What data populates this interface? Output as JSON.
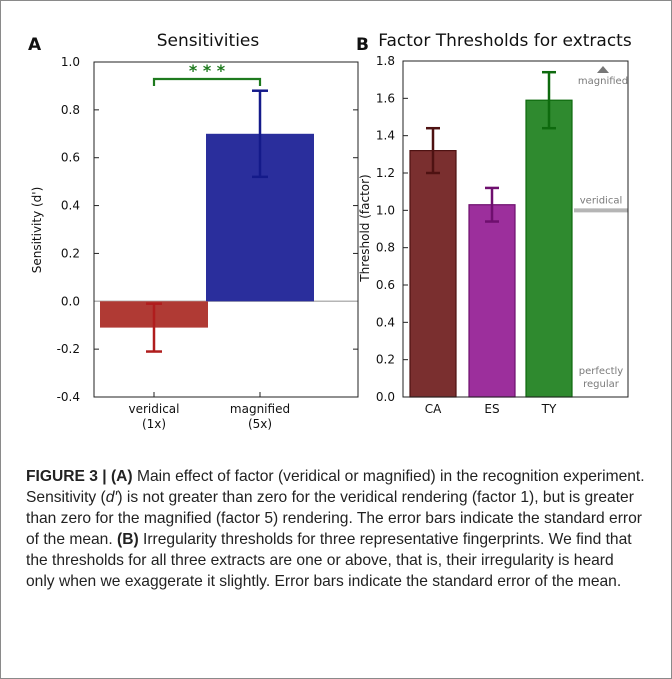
{
  "chart_data": [
    {
      "type": "bar",
      "panel_label": "A",
      "title": "Sensitivities",
      "ylabel": "Sensitivity (d')",
      "xlabel": "",
      "ylim": [
        -0.4,
        1.0
      ],
      "yticks": [
        "1.0",
        "0.8",
        "0.6",
        "0.4",
        "0.2",
        "0.0",
        "-0.2",
        "-0.4"
      ],
      "categories": [
        {
          "line1": "veridical",
          "line2": "(1x)"
        },
        {
          "line1": "magnified",
          "line2": "(5x)"
        }
      ],
      "values": [
        -0.11,
        0.7
      ],
      "errors": [
        0.1,
        0.18
      ],
      "colors": [
        "#b03a34",
        "#2a2e9c"
      ],
      "error_colors": [
        "#b01d1d",
        "#141a8a"
      ],
      "baseline": 0.0,
      "significance": {
        "label": "* * *",
        "color": "#1e7a1e"
      },
      "grid": false
    },
    {
      "type": "bar",
      "panel_label": "B",
      "title": "Factor Thresholds for extracts",
      "ylabel": "Threshold (factor)",
      "xlabel": "",
      "ylim": [
        0.0,
        1.8
      ],
      "yticks": [
        "1.8",
        "1.6",
        "1.4",
        "1.2",
        "1.0",
        "0.8",
        "0.6",
        "0.4",
        "0.2",
        "0.0"
      ],
      "categories": [
        "CA",
        "ES",
        "TY"
      ],
      "values": [
        1.32,
        1.03,
        1.59
      ],
      "errors": [
        0.12,
        0.09,
        0.15
      ],
      "colors": [
        "#7a2f2f",
        "#9c2f9c",
        "#2f8a2f"
      ],
      "error_colors": [
        "#4e1212",
        "#6e0f6e",
        "#0e6a0e"
      ],
      "reference_line": {
        "value": 1.0,
        "label": "veridical"
      },
      "annotations": {
        "top": "magnified",
        "bottom_line1": "perfectly",
        "bottom_line2": "regular"
      },
      "grid": false
    }
  ],
  "caption": {
    "figure_label": "FIGURE 3 |",
    "a_label": "(A)",
    "a_text_1": "Main effect of factor (veridical or magnified) in the recognition experiment. Sensitivity (",
    "a_dprime": "d′",
    "a_text_2": ") is not greater than zero for the veridical rendering (factor 1), but is greater than zero for the magnified (factor 5) rendering. The error bars indicate the standard error of the mean.",
    "b_label": "(B)",
    "b_text": "Irregularity thresholds for three representative fingerprints. We find that the thresholds for all three extracts are one or above, that is, their irregularity is heard only when we exaggerate it slightly. Error bars indicate the standard error of the mean."
  }
}
